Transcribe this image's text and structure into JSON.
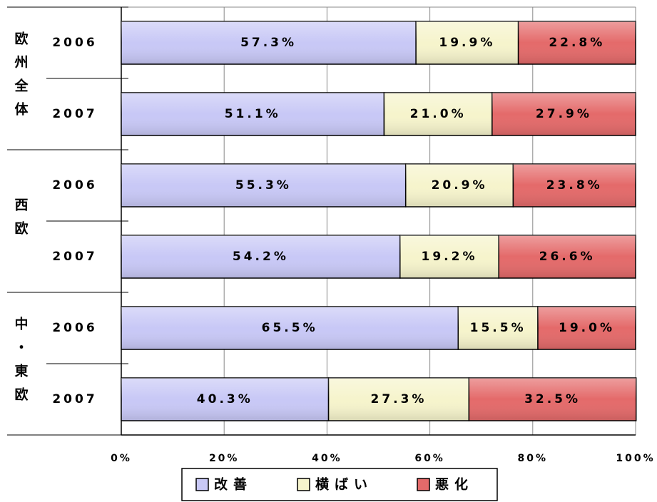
{
  "chart_data": {
    "type": "stacked-barh",
    "groups": [
      "欧州全体",
      "西欧",
      "中・東欧"
    ],
    "categories": [
      "2006",
      "2007",
      "2006",
      "2007",
      "2006",
      "2007"
    ],
    "series": [
      {
        "name": "改善",
        "color": "#c8c8f6",
        "values": [
          57.3,
          51.1,
          55.3,
          54.2,
          65.5,
          40.3
        ],
        "value_labels": [
          "57.3%",
          "51.1%",
          "55.3%",
          "54.2%",
          "65.5%",
          "40.3%"
        ]
      },
      {
        "name": "横ばい",
        "color": "#f6f4cc",
        "values": [
          19.9,
          21.0,
          20.9,
          19.2,
          15.5,
          27.3
        ],
        "value_labels": [
          "19.9%",
          "21.0%",
          "20.9%",
          "19.2%",
          "15.5%",
          "27.3%"
        ]
      },
      {
        "name": "悪化",
        "color": "#e46a6a",
        "values": [
          22.8,
          27.9,
          23.8,
          26.6,
          19.0,
          32.5
        ],
        "value_labels": [
          "22.8%",
          "27.9%",
          "23.8%",
          "26.6%",
          "19.0%",
          "32.5%"
        ]
      }
    ],
    "xlim": [
      0,
      100
    ],
    "xticks": [
      {
        "value": 0,
        "label": "0%"
      },
      {
        "value": 20,
        "label": "20%"
      },
      {
        "value": 40,
        "label": "40%"
      },
      {
        "value": 60,
        "label": "60%"
      },
      {
        "value": 80,
        "label": "80%"
      },
      {
        "value": 100,
        "label": "100%"
      }
    ],
    "grid": true,
    "legend": "bottom"
  }
}
